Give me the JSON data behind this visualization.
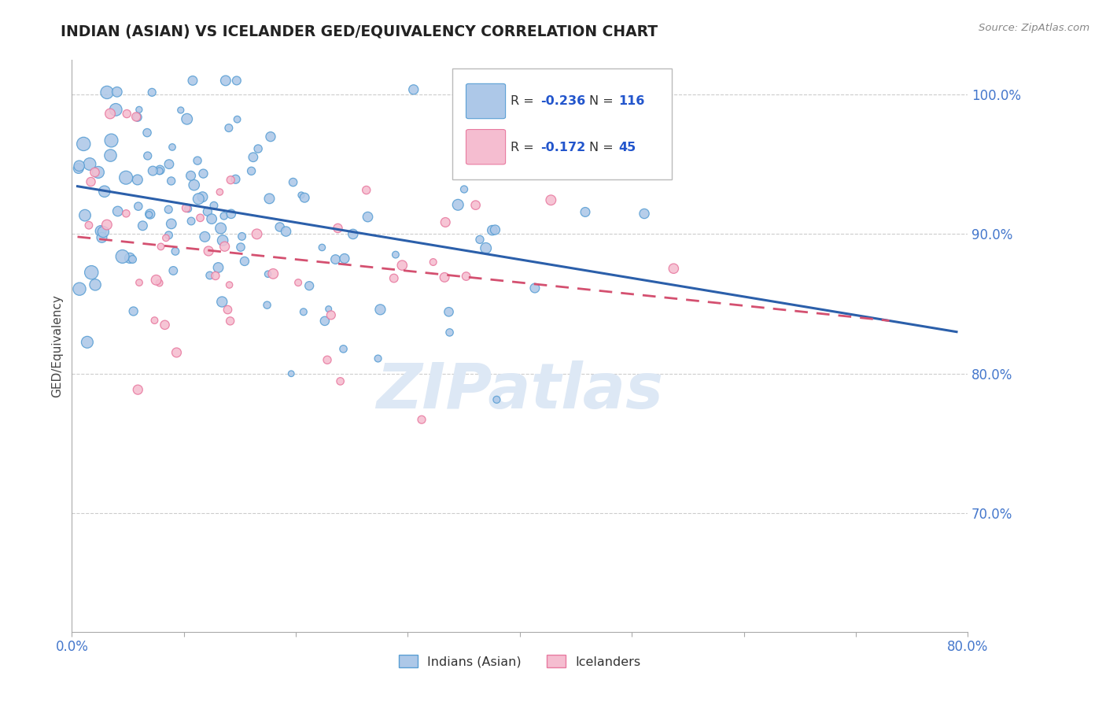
{
  "title": "INDIAN (ASIAN) VS ICELANDER GED/EQUIVALENCY CORRELATION CHART",
  "source_text": "Source: ZipAtlas.com",
  "ylabel": "GED/Equivalency",
  "xlim": [
    0.0,
    0.8
  ],
  "ylim": [
    0.615,
    1.025
  ],
  "yticks": [
    0.7,
    0.8,
    0.9,
    1.0
  ],
  "ytick_labels": [
    "70.0%",
    "80.0%",
    "90.0%",
    "100.0%"
  ],
  "xticks": [
    0.0,
    0.1,
    0.2,
    0.3,
    0.4,
    0.5,
    0.6,
    0.7,
    0.8
  ],
  "xtick_labels": [
    "0.0%",
    "",
    "",
    "",
    "",
    "",
    "",
    "",
    "80.0%"
  ],
  "blue_color": "#adc8e8",
  "blue_edge": "#5a9fd4",
  "pink_color": "#f5bdd0",
  "pink_edge": "#e87aa0",
  "blue_line_color": "#2b5faa",
  "pink_line_color": "#d45070",
  "watermark_color": "#dde8f5",
  "legend_box_color": "#ffffff",
  "legend_border_color": "#cccccc",
  "tick_color": "#4477cc",
  "spine_color": "#aaaaaa",
  "grid_color": "#cccccc",
  "title_color": "#222222",
  "source_color": "#888888",
  "ylabel_color": "#444444"
}
